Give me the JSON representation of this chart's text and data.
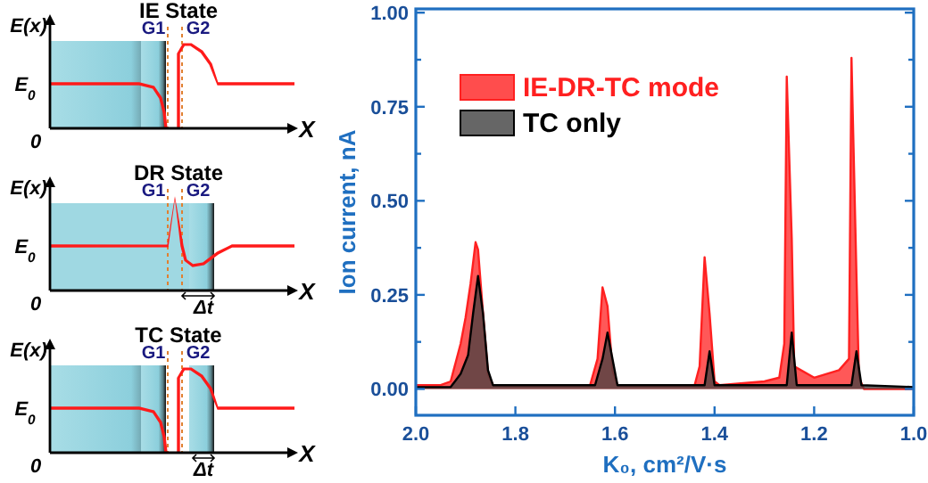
{
  "chart_data": [
    {
      "type": "other",
      "title": "IE State",
      "annotations": [
        "E(x)",
        "E$_{0}$",
        "0",
        "X",
        "G1",
        "G2"
      ]
    },
    {
      "type": "other",
      "title": "DR State",
      "annotations": [
        "E(x)",
        "E$_{0}$",
        "0",
        "X",
        "G1",
        "G2",
        "Δt"
      ]
    },
    {
      "type": "other",
      "title": "TC State",
      "annotations": [
        "E(x)",
        "E$_{0}$",
        "0",
        "X",
        "G1",
        "G2",
        "Δt"
      ]
    },
    {
      "type": "area",
      "xlabel": "K₀, cm²/V·s",
      "ylabel": "Ion current, nA",
      "xlim": [
        2.0,
        1.0
      ],
      "ylim": [
        -0.07,
        1.01
      ],
      "xticks": [
        {
          "value": 2.0,
          "label": "2.0"
        },
        {
          "value": 1.8,
          "label": "1.8"
        },
        {
          "value": 1.6,
          "label": "1.6"
        },
        {
          "value": 1.4,
          "label": "1.4"
        },
        {
          "value": 1.2,
          "label": "1.2"
        },
        {
          "value": 1.0,
          "label": "1.0"
        }
      ],
      "yticks": [
        {
          "value": 0,
          "label": "0.00"
        },
        {
          "value": 0.125,
          "label": null
        },
        {
          "value": 0.25,
          "label": "0.25"
        },
        {
          "value": 0.375,
          "label": null
        },
        {
          "value": 0.5,
          "label": "0.50"
        },
        {
          "value": 0.625,
          "label": null
        },
        {
          "value": 0.75,
          "label": "0.75"
        },
        {
          "value": 0.875,
          "label": null
        },
        {
          "value": 1.0,
          "label": "1.00"
        }
      ],
      "legend": "top left",
      "grid": false,
      "series": [
        {
          "name": "IE-DR-TC mode",
          "color": "#ff2020",
          "x": [
            2.0,
            1.95,
            1.93,
            1.91,
            1.9,
            1.89,
            1.88,
            1.875,
            1.865,
            1.855,
            1.845,
            1.8,
            1.7,
            1.65,
            1.635,
            1.625,
            1.615,
            1.605,
            1.595,
            1.5,
            1.44,
            1.43,
            1.42,
            1.41,
            1.4,
            1.39,
            1.3,
            1.27,
            1.26,
            1.255,
            1.245,
            1.24,
            1.2,
            1.15,
            1.13,
            1.125,
            1.115,
            1.11,
            1.1,
            1.0
          ],
          "values": [
            0.01,
            0.01,
            0.02,
            0.12,
            0.19,
            0.28,
            0.39,
            0.37,
            0.2,
            0.04,
            0.01,
            0.01,
            0.01,
            0.01,
            0.08,
            0.27,
            0.22,
            0.05,
            0.01,
            0.01,
            0.01,
            0.06,
            0.35,
            0.2,
            0.02,
            0.01,
            0.02,
            0.03,
            0.12,
            0.83,
            0.4,
            0.06,
            0.03,
            0.05,
            0.08,
            0.88,
            0.3,
            0.03,
            0.0,
            0.0
          ]
        },
        {
          "name": "TC only",
          "color": "#404040",
          "x": [
            2.0,
            1.93,
            1.91,
            1.895,
            1.885,
            1.875,
            1.865,
            1.855,
            1.845,
            1.64,
            1.625,
            1.615,
            1.605,
            1.595,
            1.42,
            1.41,
            1.4,
            1.255,
            1.245,
            1.235,
            1.125,
            1.115,
            1.105,
            1.0
          ],
          "values": [
            0.005,
            0.005,
            0.04,
            0.09,
            0.2,
            0.3,
            0.2,
            0.05,
            0.01,
            0.01,
            0.08,
            0.15,
            0.08,
            0.01,
            0.01,
            0.1,
            0.01,
            0.01,
            0.15,
            0.01,
            0.01,
            0.1,
            0.01,
            0.005
          ]
        }
      ]
    }
  ]
}
